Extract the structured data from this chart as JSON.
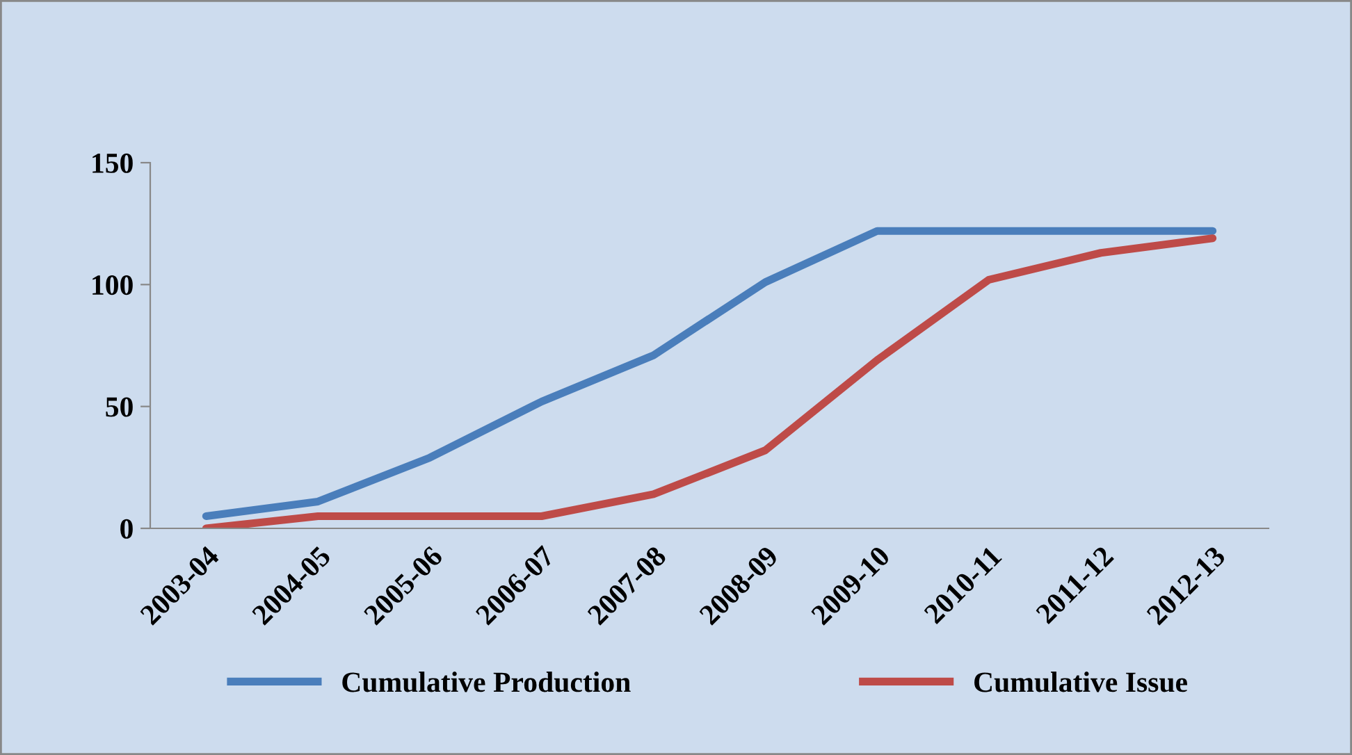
{
  "chart_data": {
    "type": "line",
    "categories": [
      "2003-04",
      "2004-05",
      "2005-06",
      "2006-07",
      "2007-08",
      "2008-09",
      "2009-10",
      "2010-11",
      "2011-12",
      "2012-13"
    ],
    "series": [
      {
        "name": "Cumulative Production",
        "color": "#4a7ebb",
        "values": [
          5,
          11,
          29,
          52,
          71,
          101,
          122,
          122,
          122,
          122
        ]
      },
      {
        "name": "Cumulative Issue",
        "color": "#be4b48",
        "values": [
          0,
          5,
          5,
          5,
          14,
          32,
          69,
          102,
          113,
          119
        ]
      }
    ],
    "ylim": [
      0,
      150
    ],
    "yticks": [
      0,
      50,
      100,
      150
    ],
    "grid": false,
    "legend": "bottom",
    "marker": "none",
    "line_style": "solid"
  }
}
